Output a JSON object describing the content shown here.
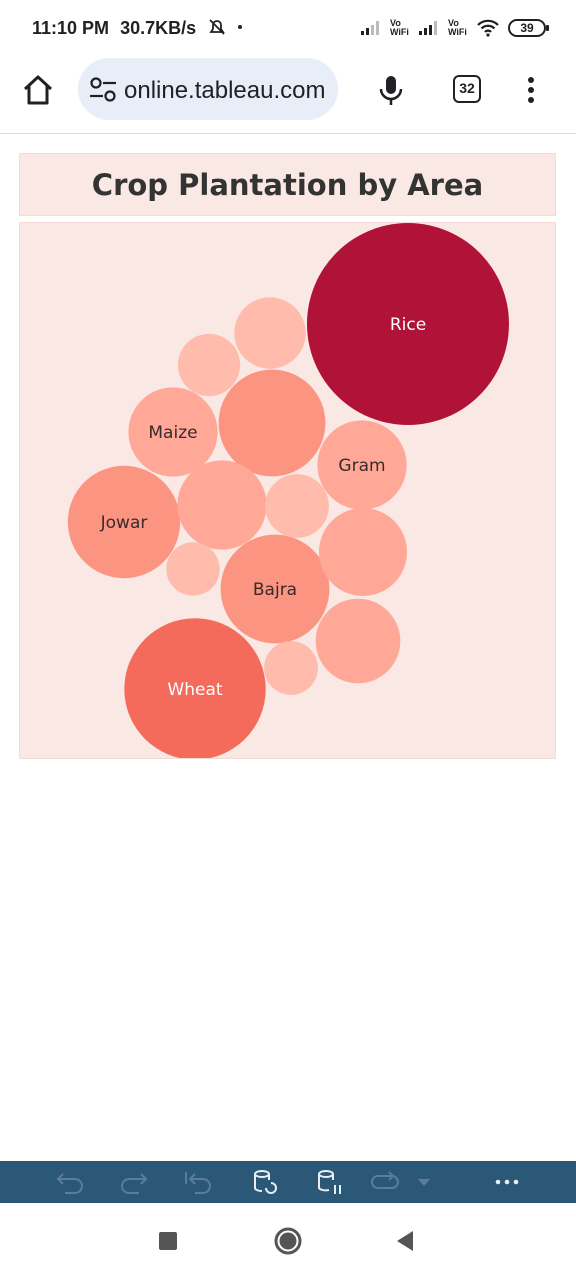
{
  "status_bar": {
    "time": "11:10 PM",
    "speed": "30.7KB/s",
    "battery": "39",
    "net1_label": "Vo WiFi",
    "net2_label": "Vo WiFi",
    "icons": [
      "mute-bell-icon",
      "signal-icon",
      "wifi-icon",
      "battery-icon"
    ]
  },
  "browser": {
    "url": "online.tableau.com",
    "tab_count": "32",
    "icons": [
      "home-icon",
      "site-settings-icon",
      "microphone-icon",
      "tabs-icon",
      "more-vert-icon"
    ]
  },
  "dashboard": {
    "title": "Crop Plantation by Area"
  },
  "chart_data": {
    "type": "bubble",
    "title": "Crop Plantation by Area",
    "color_scale": [
      "#ffc4b6",
      "#f46a5b",
      "#b01238"
    ],
    "bubbles": [
      {
        "label": "Rice",
        "value": 100,
        "color": "#b01238"
      },
      {
        "label": "Wheat",
        "value": 49,
        "color": "#f46a5b"
      },
      {
        "label": "Jowar",
        "value": 31,
        "color": "#fb9480"
      },
      {
        "label": "Bajra",
        "value": 29,
        "color": "#fb9480"
      },
      {
        "label": "",
        "value": 28,
        "color": "#fb9480"
      },
      {
        "label": "Gram",
        "value": 19.5,
        "color": "#ffa898"
      },
      {
        "label": "Maize",
        "value": 19.5,
        "color": "#ffa898"
      },
      {
        "label": "",
        "value": 19.5,
        "color": "#ffa898"
      },
      {
        "label": "",
        "value": 19,
        "color": "#ffa898"
      },
      {
        "label": "",
        "value": 17.5,
        "color": "#ffa898"
      },
      {
        "label": "",
        "value": 12.5,
        "color": "#ffbcac"
      },
      {
        "label": "",
        "value": 10,
        "color": "#ffbcac"
      },
      {
        "label": "",
        "value": 9.5,
        "color": "#ffbcac"
      },
      {
        "label": "",
        "value": 7.1,
        "color": "#ffbcac"
      },
      {
        "label": "",
        "value": 7,
        "color": "#ffbcac"
      }
    ]
  },
  "tableau_toolbar": {
    "icons": [
      "undo-icon",
      "redo-icon",
      "revert-icon",
      "refresh-data-icon",
      "pause-updates-icon",
      "replay-icon",
      "dropdown-icon",
      "more-options-icon"
    ]
  },
  "nav_bar": {
    "icons": [
      "recents-icon",
      "home-circle-icon",
      "back-icon"
    ]
  }
}
